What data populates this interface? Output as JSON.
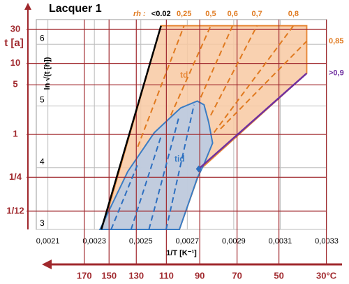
{
  "chart_data": {
    "type": "line",
    "title": "Lacquer 1",
    "x_label": "1/T [K⁻¹]",
    "y_label": "ln √(t [h])",
    "rh_label": "rh :",
    "xlim": [
      0.00205,
      0.0033
    ],
    "ylim": [
      3,
      6.4
    ],
    "xticks": [
      {
        "value": 0.0021,
        "label": "0,0021"
      },
      {
        "value": 0.0023,
        "label": "0,0023"
      },
      {
        "value": 0.0025,
        "label": "0,0025"
      },
      {
        "value": 0.0027,
        "label": "0,0027"
      },
      {
        "value": 0.0029,
        "label": "0,0029"
      },
      {
        "value": 0.0031,
        "label": "0,0031"
      },
      {
        "value": 0.0033,
        "label": "0,0033"
      }
    ],
    "yticks": [
      3,
      4,
      5,
      6
    ],
    "grid": true,
    "t_axis": {
      "label": "t [a]",
      "ticks": [
        30,
        10,
        5,
        1,
        {
          "value": 0.25,
          "label": "1/4"
        },
        {
          "value": 0.0833,
          "label": "1/12"
        }
      ]
    },
    "temp_axis": {
      "ticks": [
        170,
        150,
        130,
        110,
        90,
        70,
        50,
        {
          "value": 30,
          "label": "30°C"
        }
      ]
    },
    "regions": [
      {
        "name": "td",
        "color": "#f8c9a2",
        "stroke": "#e88a3c",
        "x": [
          0.002335,
          0.002587,
          0.003214,
          0.003214,
          0.002758,
          0.002666
        ],
        "values": [
          3,
          6.3,
          6.3,
          5.53,
          3.98,
          3
        ]
      },
      {
        "name": "tid",
        "color": "#b7cbe6",
        "stroke": "#3a7cc4",
        "x": [
          0.002324,
          0.002444,
          0.002558,
          0.002672,
          0.002743,
          0.002772,
          0.002792,
          0.002809,
          0.002772,
          0.002743,
          0.002706,
          0.002666
        ],
        "values": [
          3,
          3.94,
          4.57,
          4.97,
          5.08,
          5.02,
          4.74,
          4.4,
          4.06,
          3.83,
          3.43,
          3
        ]
      }
    ],
    "series": [
      {
        "name": "<0.02",
        "color": "#000000",
        "dashed": false,
        "x": [
          0.00233,
          0.002587
        ],
        "values": [
          3,
          6.3
        ]
      },
      {
        "name": "0,25",
        "color": "#e07a20",
        "dashed": true,
        "x": [
          0.002487,
          0.002686
        ],
        "values": [
          4.34,
          6.3
        ]
      },
      {
        "name": "0,5",
        "color": "#e07a20",
        "dashed": true,
        "x": [
          0.002629,
          0.002801
        ],
        "values": [
          4.85,
          6.3
        ]
      },
      {
        "name": "0,6",
        "color": "#e07a20",
        "dashed": true,
        "x": [
          0.002758,
          0.002895
        ],
        "values": [
          5.14,
          6.3
        ]
      },
      {
        "name": "0,7",
        "color": "#e07a20",
        "dashed": true,
        "x": [
          0.002801,
          0.003
        ],
        "values": [
          4.85,
          6.3
        ]
      },
      {
        "name": "0,8",
        "color": "#e07a20",
        "dashed": true,
        "x": [
          0.002815,
          0.003157
        ],
        "values": [
          4.57,
          6.3
        ]
      },
      {
        "name": "0,85",
        "color": "#e07a20",
        "dashed": true,
        "x": [
          0.002843,
          0.003214
        ],
        "values": [
          4.63,
          6.05
        ]
      },
      {
        "name": ">0,9",
        "color": "#7030a0",
        "dashed": false,
        "x": [
          0.002749,
          0.003214
        ],
        "values": [
          3.98,
          5.53
        ]
      },
      {
        "color": "#2d6fc0",
        "dashed": true,
        "x": [
          0.002372,
          0.002487
        ],
        "values": [
          3,
          4.06
        ]
      },
      {
        "color": "#2d6fc0",
        "dashed": true,
        "x": [
          0.002458,
          0.002587
        ],
        "values": [
          3,
          4.51
        ]
      },
      {
        "color": "#2d6fc0",
        "dashed": true,
        "x": [
          0.002535,
          0.002666
        ],
        "values": [
          3,
          4.85
        ]
      },
      {
        "color": "#2d6fc0",
        "dashed": true,
        "x": [
          0.002609,
          0.002729
        ],
        "values": [
          3,
          5.02
        ]
      }
    ],
    "axis_color": "#a0282d"
  }
}
